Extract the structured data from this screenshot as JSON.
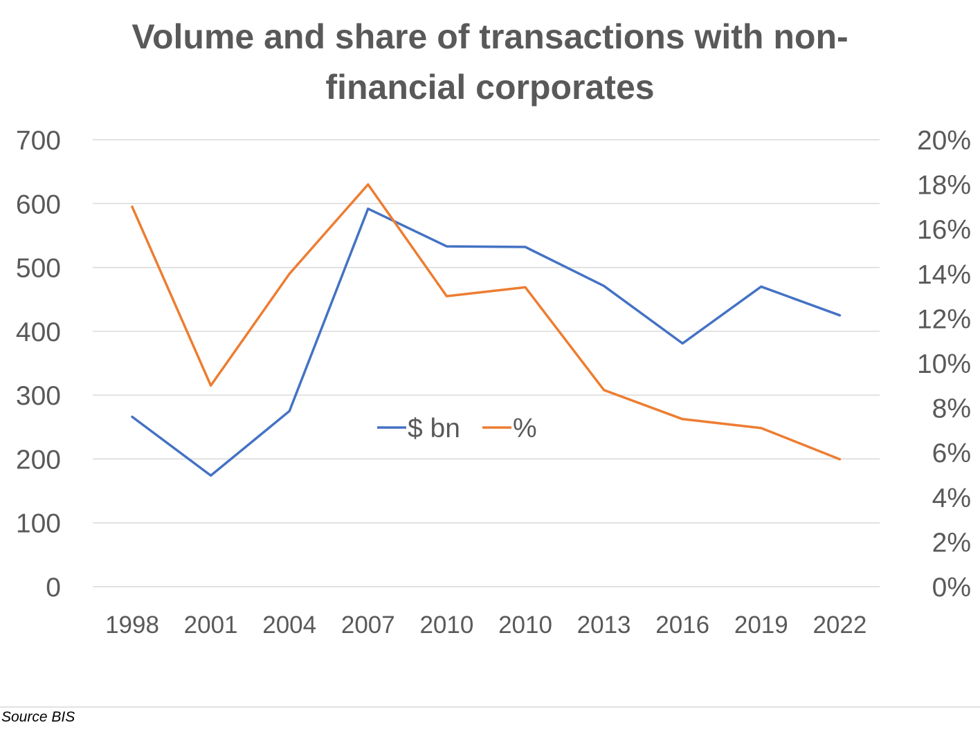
{
  "chart_data": {
    "type": "line",
    "title_lines": [
      "Volume and share of transactions with non-",
      "financial corporates"
    ],
    "categories": [
      "1998",
      "2001",
      "2004",
      "2007",
      "2010",
      "2010",
      "2013",
      "2016",
      "2019",
      "2022"
    ],
    "y_left": {
      "range": [
        0,
        700
      ],
      "ticks": [
        "0",
        "100",
        "200",
        "300",
        "400",
        "500",
        "600",
        "700"
      ]
    },
    "y_right": {
      "range": [
        0,
        20
      ],
      "ticks": [
        "0%",
        "2%",
        "4%",
        "6%",
        "8%",
        "10%",
        "12%",
        "14%",
        "16%",
        "18%",
        "20%"
      ]
    },
    "series": [
      {
        "name": "$ bn",
        "axis": "left",
        "color": "#4472C4",
        "values": [
          266,
          174,
          275,
          592,
          533,
          532,
          471,
          381,
          470,
          425
        ]
      },
      {
        "name": "%",
        "axis": "right",
        "color": "#ED7D31",
        "values": [
          17.0,
          9.0,
          14.0,
          18.0,
          13.0,
          13.4,
          8.8,
          7.5,
          7.1,
          5.7
        ]
      }
    ],
    "gridlines": true,
    "legend_position": "center"
  },
  "footer": {
    "source": "Source BIS"
  }
}
